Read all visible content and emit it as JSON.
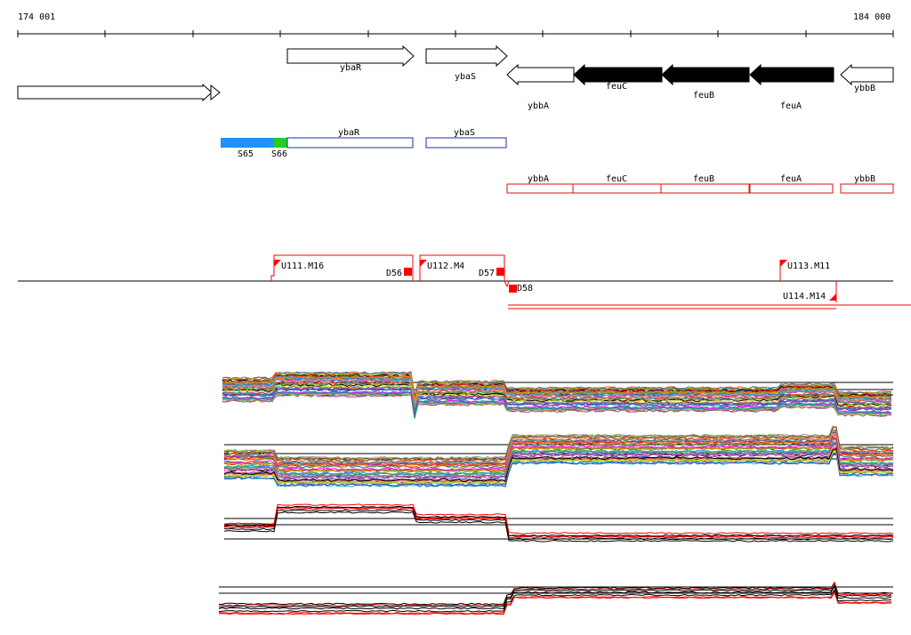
{
  "ruler": {
    "start_label": "174 001",
    "end_label": "184 000"
  },
  "genes": [
    {
      "name": "",
      "strand": "+",
      "fill": "white"
    },
    {
      "name": "ybaR",
      "strand": "+",
      "fill": "white"
    },
    {
      "name": "ybaS",
      "strand": "+",
      "fill": "white"
    },
    {
      "name": "ybbA",
      "strand": "-",
      "fill": "white"
    },
    {
      "name": "feuC",
      "strand": "-",
      "fill": "black"
    },
    {
      "name": "feuB",
      "strand": "-",
      "fill": "black"
    },
    {
      "name": "feuA",
      "strand": "-",
      "fill": "black"
    },
    {
      "name": "ybbB",
      "strand": "-",
      "fill": "white"
    }
  ],
  "segments_row1": [
    {
      "label": "S65",
      "color": "#1e90ff"
    },
    {
      "label": "S66",
      "color": "#22cc22"
    },
    {
      "label": "ybaR",
      "color": "#1f2fb0"
    },
    {
      "label": "ybaS",
      "color": "#1f2fb0"
    }
  ],
  "segments_row2": [
    {
      "label": "ybbA",
      "color": "#dd1111"
    },
    {
      "label": "feuC",
      "color": "#dd1111"
    },
    {
      "label": "feuB",
      "color": "#dd1111"
    },
    {
      "label": "feuA",
      "color": "#dd1111"
    },
    {
      "label": "ybbB",
      "color": "#dd1111"
    }
  ],
  "transcripts": [
    {
      "label": "U111.M16"
    },
    {
      "label": "U112.M4"
    },
    {
      "label": "U113.M11"
    },
    {
      "label": "U114.M14"
    }
  ],
  "terminators": [
    {
      "label": "D56"
    },
    {
      "label": "D57"
    },
    {
      "label": "D58"
    }
  ],
  "colors": {
    "accent_red": "#ff0000",
    "blue": "#1f2fb0"
  }
}
